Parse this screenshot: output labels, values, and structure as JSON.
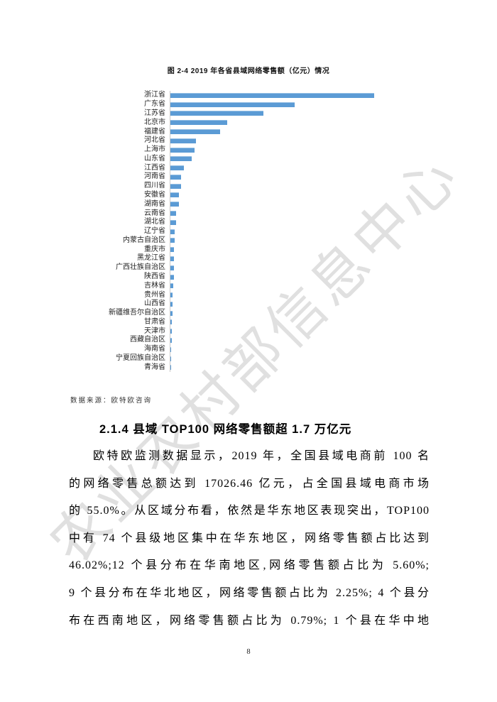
{
  "page": {
    "number": "8"
  },
  "watermark": {
    "text": "农业农村部信息中心",
    "color": "#dcdcdc"
  },
  "figure": {
    "title": "图 2-4 2019 年各省县域网络零售额（亿元）情况",
    "source_note": "数据来源：欧特欧咨询"
  },
  "chart_data": {
    "type": "bar",
    "orientation": "horizontal",
    "title": "图 2-4 2019 年各省县域网络零售额（亿元）情况",
    "categories": [
      "浙江省",
      "广东省",
      "江苏省",
      "北京市",
      "福建省",
      "河北省",
      "上海市",
      "山东省",
      "江西省",
      "河南省",
      "四川省",
      "安徽省",
      "湖南省",
      "云南省",
      "湖北省",
      "辽宁省",
      "内蒙古自治区",
      "重庆市",
      "黑龙江省",
      "广西壮族自治区",
      "陕西省",
      "吉林省",
      "贵州省",
      "山西省",
      "新疆维吾尔自治区",
      "甘肃省",
      "天津市",
      "西藏自治区",
      "海南省",
      "宁夏回族自治区",
      "青海省"
    ],
    "values": [
      100,
      61,
      45.5,
      28,
      24.5,
      12.5,
      12,
      10.5,
      6.6,
      5.2,
      5.2,
      4.2,
      4.2,
      2.8,
      2.8,
      2.1,
      2.1,
      1.9,
      1.9,
      1.7,
      1.7,
      1.4,
      1.2,
      1.2,
      1.1,
      0.85,
      0.85,
      0.6,
      0.4,
      0.3,
      0.2
    ],
    "value_note": "x-axis has no tick labels; values are relative bar lengths with longest bar (浙江省) = 100",
    "unit_label": "亿元",
    "bar_color": "#5b9bd5",
    "axis_color": "#c9c9c9",
    "grid": false,
    "legend": false
  },
  "section": {
    "heading": "2.1.4 县域 TOP100 网络零售额超 1.7 万亿元",
    "paragraph_lines": [
      "欧特欧监测数据显示，2019 年，全国县域电商前 100 名",
      "的网络零售总额达到 17026.46 亿元，占全国县域电商市场",
      "的 55.0%。从区域分布看，依然是华东地区表现突出，TOP100",
      "中有 74 个县级地区集中在华东地区，网络零售额占比达到",
      "46.02%;12 个县分布在华南地区,网络零售额占比为 5.60%;",
      "9 个县分布在华北地区，网络零售额占比为 2.25%; 4 个县分",
      "布在西南地区，网络零售额占比为 0.79%; 1 个县在华中地"
    ]
  }
}
